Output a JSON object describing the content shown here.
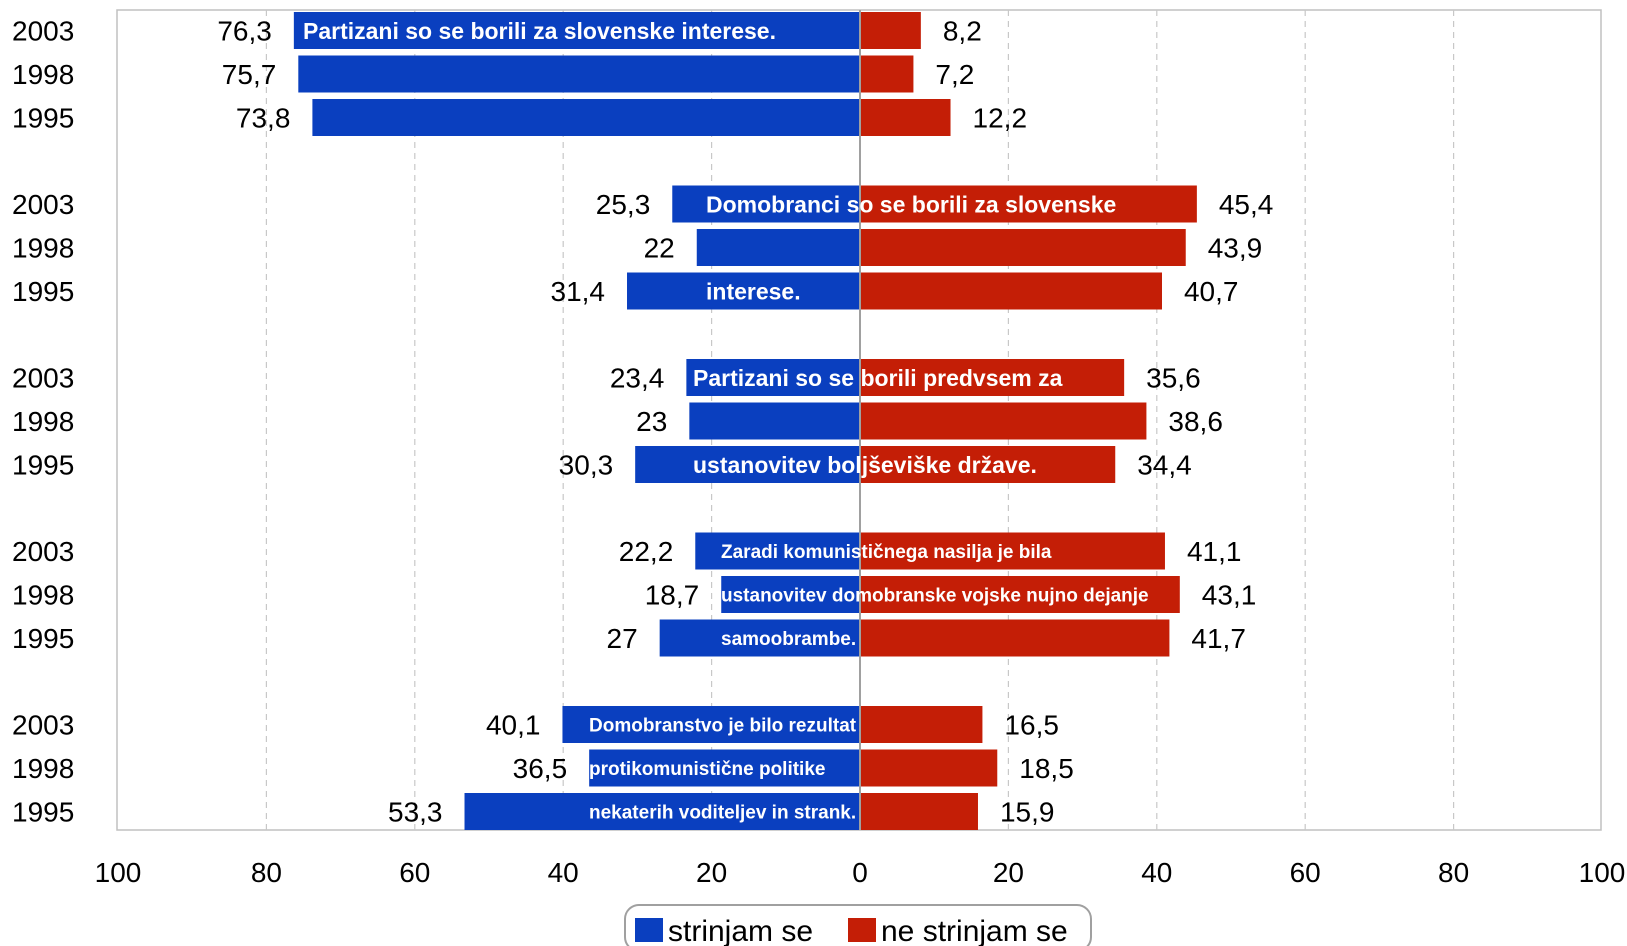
{
  "chart_data": {
    "type": "bar",
    "orientation": "diverging-horizontal",
    "title": "",
    "xlabel": "",
    "ylabel": "",
    "xlim": [
      -100,
      100
    ],
    "x_ticks": [
      "100",
      "80",
      "60",
      "40",
      "20",
      "0",
      "20",
      "40",
      "60",
      "80",
      "100"
    ],
    "grid": true,
    "legend_position": "bottom",
    "colors": {
      "agree": "#0a3fbf",
      "disagree": "#c41e06"
    },
    "series": [
      {
        "name": "strinjam se",
        "color": "#0a3fbf"
      },
      {
        "name": "ne strinjam se",
        "color": "#c41e06"
      }
    ],
    "groups": [
      {
        "statement_lines": [
          "Partizani so se borili za slovenske interese."
        ],
        "years": [
          "2003",
          "1998",
          "1995"
        ],
        "agree": [
          76.3,
          75.7,
          73.8
        ],
        "agree_labels": [
          "76,3",
          "75,7",
          "73,8"
        ],
        "disagree": [
          8.2,
          7.2,
          12.2
        ],
        "disagree_labels": [
          "8,2",
          "7,2",
          "12,2"
        ]
      },
      {
        "statement_lines": [
          "Domobranci so se borili za slovenske",
          "interese."
        ],
        "years": [
          "2003",
          "1998",
          "1995"
        ],
        "agree": [
          25.3,
          22,
          31.4
        ],
        "agree_labels": [
          "25,3",
          "22",
          "31,4"
        ],
        "disagree": [
          45.4,
          43.9,
          40.7
        ],
        "disagree_labels": [
          "45,4",
          "43,9",
          "40,7"
        ]
      },
      {
        "statement_lines": [
          "Partizani so se borili predvsem za",
          "ustanovitev boljševiške države."
        ],
        "years": [
          "2003",
          "1998",
          "1995"
        ],
        "agree": [
          23.4,
          23,
          30.3
        ],
        "agree_labels": [
          "23,4",
          "23",
          "30,3"
        ],
        "disagree": [
          35.6,
          38.6,
          34.4
        ],
        "disagree_labels": [
          "35,6",
          "38,6",
          "34,4"
        ]
      },
      {
        "statement_lines": [
          "Zaradi komunističnega nasilja je bila",
          "ustanovitev domobranske vojske nujno dejanje",
          "samoobrambe."
        ],
        "years": [
          "2003",
          "1998",
          "1995"
        ],
        "agree": [
          22.2,
          18.7,
          27
        ],
        "agree_labels": [
          "22,2",
          "18,7",
          "27"
        ],
        "disagree": [
          41.1,
          43.1,
          41.7
        ],
        "disagree_labels": [
          "41,1",
          "43,1",
          "41,7"
        ]
      },
      {
        "statement_lines": [
          "Domobranstvo je bilo rezultat",
          "protikomunistične politike",
          "nekaterih voditeljev in strank."
        ],
        "years": [
          "2003",
          "1998",
          "1995"
        ],
        "agree": [
          40.1,
          36.5,
          53.3
        ],
        "agree_labels": [
          "40,1",
          "36,5",
          "53,3"
        ],
        "disagree": [
          16.5,
          18.5,
          15.9
        ],
        "disagree_labels": [
          "16,5",
          "18,5",
          "15,9"
        ]
      }
    ]
  }
}
